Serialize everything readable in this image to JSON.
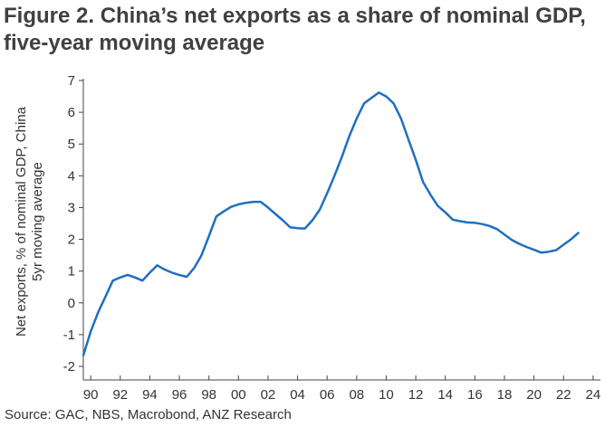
{
  "title": "Figure 2. China’s net exports as a share of nominal GDP, five-year moving average",
  "source": "Source: GAC, NBS, Macrobond, ANZ Research",
  "chart_data": {
    "type": "line",
    "ylabel": [
      "Net exports, % of nominal GDP, China",
      "5yr moving average"
    ],
    "xlabel": "",
    "x_tick_labels": [
      "90",
      "92",
      "94",
      "96",
      "98",
      "00",
      "02",
      "04",
      "06",
      "08",
      "10",
      "12",
      "14",
      "16",
      "18",
      "20",
      "22",
      "24"
    ],
    "y_tick_labels": [
      "-2",
      "-1",
      "0",
      "1",
      "2",
      "3",
      "4",
      "5",
      "6",
      "7"
    ],
    "ylim": [
      -2,
      7
    ],
    "xlim": [
      1989.5,
      2024.5
    ],
    "grid": false,
    "line_color": "#1f6fc1",
    "series": [
      {
        "x": [
          1989.5,
          1990,
          1990.5,
          1991,
          1991.5,
          1992,
          1992.5,
          1993,
          1993.5,
          1994,
          1994.5,
          1995,
          1995.5,
          1996,
          1996.5,
          1997,
          1997.5,
          1998,
          1998.5,
          1999,
          1999.5,
          2000,
          2000.5,
          2001,
          2001.5,
          2002,
          2002.5,
          2003,
          2003.5,
          2004,
          2004.5,
          2005,
          2005.5,
          2006,
          2006.5,
          2007,
          2007.5,
          2008,
          2008.5,
          2009,
          2009.5,
          2010,
          2010.5,
          2011,
          2011.5,
          2012,
          2012.5,
          2013,
          2013.5,
          2014,
          2014.5,
          2015,
          2015.5,
          2016,
          2016.5,
          2017,
          2017.5,
          2018,
          2018.5,
          2019,
          2019.5,
          2020,
          2020.5,
          2021,
          2021.5,
          2022,
          2022.5,
          2023
        ],
        "values": [
          -1.65,
          -0.9,
          -0.3,
          0.2,
          0.7,
          0.8,
          0.88,
          0.8,
          0.7,
          0.95,
          1.18,
          1.05,
          0.95,
          0.88,
          0.82,
          1.1,
          1.5,
          2.1,
          2.72,
          2.88,
          3.02,
          3.1,
          3.15,
          3.18,
          3.18,
          3.0,
          2.8,
          2.6,
          2.38,
          2.35,
          2.34,
          2.6,
          2.93,
          3.45,
          4.0,
          4.6,
          5.25,
          5.8,
          6.28,
          6.45,
          6.62,
          6.5,
          6.28,
          5.8,
          5.15,
          4.5,
          3.8,
          3.4,
          3.05,
          2.85,
          2.62,
          2.57,
          2.53,
          2.52,
          2.48,
          2.42,
          2.32,
          2.15,
          1.98,
          1.86,
          1.76,
          1.67,
          1.58,
          1.61,
          1.66,
          1.83,
          2.0,
          2.2
        ]
      }
    ]
  }
}
